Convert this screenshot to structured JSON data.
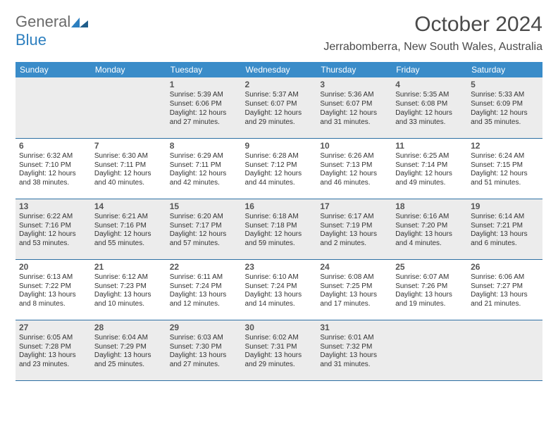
{
  "brand": {
    "part1": "General",
    "part2": "Blue"
  },
  "title": "October 2024",
  "location": "Jerrabomberra, New South Wales, Australia",
  "colors": {
    "header_bg": "#3a8cc9",
    "header_text": "#ffffff",
    "shaded_bg": "#ececec",
    "row_border": "#2d6fa3",
    "text": "#333333",
    "brand_gray": "#6a6a6a",
    "brand_blue": "#2d7fbf"
  },
  "day_headers": [
    "Sunday",
    "Monday",
    "Tuesday",
    "Wednesday",
    "Thursday",
    "Friday",
    "Saturday"
  ],
  "weeks": [
    [
      {
        "blank": true
      },
      {
        "blank": true
      },
      {
        "n": "1",
        "sr": "Sunrise: 5:39 AM",
        "ss": "Sunset: 6:06 PM",
        "dl1": "Daylight: 12 hours",
        "dl2": "and 27 minutes."
      },
      {
        "n": "2",
        "sr": "Sunrise: 5:37 AM",
        "ss": "Sunset: 6:07 PM",
        "dl1": "Daylight: 12 hours",
        "dl2": "and 29 minutes."
      },
      {
        "n": "3",
        "sr": "Sunrise: 5:36 AM",
        "ss": "Sunset: 6:07 PM",
        "dl1": "Daylight: 12 hours",
        "dl2": "and 31 minutes."
      },
      {
        "n": "4",
        "sr": "Sunrise: 5:35 AM",
        "ss": "Sunset: 6:08 PM",
        "dl1": "Daylight: 12 hours",
        "dl2": "and 33 minutes."
      },
      {
        "n": "5",
        "sr": "Sunrise: 5:33 AM",
        "ss": "Sunset: 6:09 PM",
        "dl1": "Daylight: 12 hours",
        "dl2": "and 35 minutes."
      }
    ],
    [
      {
        "n": "6",
        "sr": "Sunrise: 6:32 AM",
        "ss": "Sunset: 7:10 PM",
        "dl1": "Daylight: 12 hours",
        "dl2": "and 38 minutes."
      },
      {
        "n": "7",
        "sr": "Sunrise: 6:30 AM",
        "ss": "Sunset: 7:11 PM",
        "dl1": "Daylight: 12 hours",
        "dl2": "and 40 minutes."
      },
      {
        "n": "8",
        "sr": "Sunrise: 6:29 AM",
        "ss": "Sunset: 7:11 PM",
        "dl1": "Daylight: 12 hours",
        "dl2": "and 42 minutes."
      },
      {
        "n": "9",
        "sr": "Sunrise: 6:28 AM",
        "ss": "Sunset: 7:12 PM",
        "dl1": "Daylight: 12 hours",
        "dl2": "and 44 minutes."
      },
      {
        "n": "10",
        "sr": "Sunrise: 6:26 AM",
        "ss": "Sunset: 7:13 PM",
        "dl1": "Daylight: 12 hours",
        "dl2": "and 46 minutes."
      },
      {
        "n": "11",
        "sr": "Sunrise: 6:25 AM",
        "ss": "Sunset: 7:14 PM",
        "dl1": "Daylight: 12 hours",
        "dl2": "and 49 minutes."
      },
      {
        "n": "12",
        "sr": "Sunrise: 6:24 AM",
        "ss": "Sunset: 7:15 PM",
        "dl1": "Daylight: 12 hours",
        "dl2": "and 51 minutes."
      }
    ],
    [
      {
        "n": "13",
        "sr": "Sunrise: 6:22 AM",
        "ss": "Sunset: 7:16 PM",
        "dl1": "Daylight: 12 hours",
        "dl2": "and 53 minutes."
      },
      {
        "n": "14",
        "sr": "Sunrise: 6:21 AM",
        "ss": "Sunset: 7:16 PM",
        "dl1": "Daylight: 12 hours",
        "dl2": "and 55 minutes."
      },
      {
        "n": "15",
        "sr": "Sunrise: 6:20 AM",
        "ss": "Sunset: 7:17 PM",
        "dl1": "Daylight: 12 hours",
        "dl2": "and 57 minutes."
      },
      {
        "n": "16",
        "sr": "Sunrise: 6:18 AM",
        "ss": "Sunset: 7:18 PM",
        "dl1": "Daylight: 12 hours",
        "dl2": "and 59 minutes."
      },
      {
        "n": "17",
        "sr": "Sunrise: 6:17 AM",
        "ss": "Sunset: 7:19 PM",
        "dl1": "Daylight: 13 hours",
        "dl2": "and 2 minutes."
      },
      {
        "n": "18",
        "sr": "Sunrise: 6:16 AM",
        "ss": "Sunset: 7:20 PM",
        "dl1": "Daylight: 13 hours",
        "dl2": "and 4 minutes."
      },
      {
        "n": "19",
        "sr": "Sunrise: 6:14 AM",
        "ss": "Sunset: 7:21 PM",
        "dl1": "Daylight: 13 hours",
        "dl2": "and 6 minutes."
      }
    ],
    [
      {
        "n": "20",
        "sr": "Sunrise: 6:13 AM",
        "ss": "Sunset: 7:22 PM",
        "dl1": "Daylight: 13 hours",
        "dl2": "and 8 minutes."
      },
      {
        "n": "21",
        "sr": "Sunrise: 6:12 AM",
        "ss": "Sunset: 7:23 PM",
        "dl1": "Daylight: 13 hours",
        "dl2": "and 10 minutes."
      },
      {
        "n": "22",
        "sr": "Sunrise: 6:11 AM",
        "ss": "Sunset: 7:24 PM",
        "dl1": "Daylight: 13 hours",
        "dl2": "and 12 minutes."
      },
      {
        "n": "23",
        "sr": "Sunrise: 6:10 AM",
        "ss": "Sunset: 7:24 PM",
        "dl1": "Daylight: 13 hours",
        "dl2": "and 14 minutes."
      },
      {
        "n": "24",
        "sr": "Sunrise: 6:08 AM",
        "ss": "Sunset: 7:25 PM",
        "dl1": "Daylight: 13 hours",
        "dl2": "and 17 minutes."
      },
      {
        "n": "25",
        "sr": "Sunrise: 6:07 AM",
        "ss": "Sunset: 7:26 PM",
        "dl1": "Daylight: 13 hours",
        "dl2": "and 19 minutes."
      },
      {
        "n": "26",
        "sr": "Sunrise: 6:06 AM",
        "ss": "Sunset: 7:27 PM",
        "dl1": "Daylight: 13 hours",
        "dl2": "and 21 minutes."
      }
    ],
    [
      {
        "n": "27",
        "sr": "Sunrise: 6:05 AM",
        "ss": "Sunset: 7:28 PM",
        "dl1": "Daylight: 13 hours",
        "dl2": "and 23 minutes."
      },
      {
        "n": "28",
        "sr": "Sunrise: 6:04 AM",
        "ss": "Sunset: 7:29 PM",
        "dl1": "Daylight: 13 hours",
        "dl2": "and 25 minutes."
      },
      {
        "n": "29",
        "sr": "Sunrise: 6:03 AM",
        "ss": "Sunset: 7:30 PM",
        "dl1": "Daylight: 13 hours",
        "dl2": "and 27 minutes."
      },
      {
        "n": "30",
        "sr": "Sunrise: 6:02 AM",
        "ss": "Sunset: 7:31 PM",
        "dl1": "Daylight: 13 hours",
        "dl2": "and 29 minutes."
      },
      {
        "n": "31",
        "sr": "Sunrise: 6:01 AM",
        "ss": "Sunset: 7:32 PM",
        "dl1": "Daylight: 13 hours",
        "dl2": "and 31 minutes."
      },
      {
        "blank": true
      },
      {
        "blank": true
      }
    ]
  ]
}
